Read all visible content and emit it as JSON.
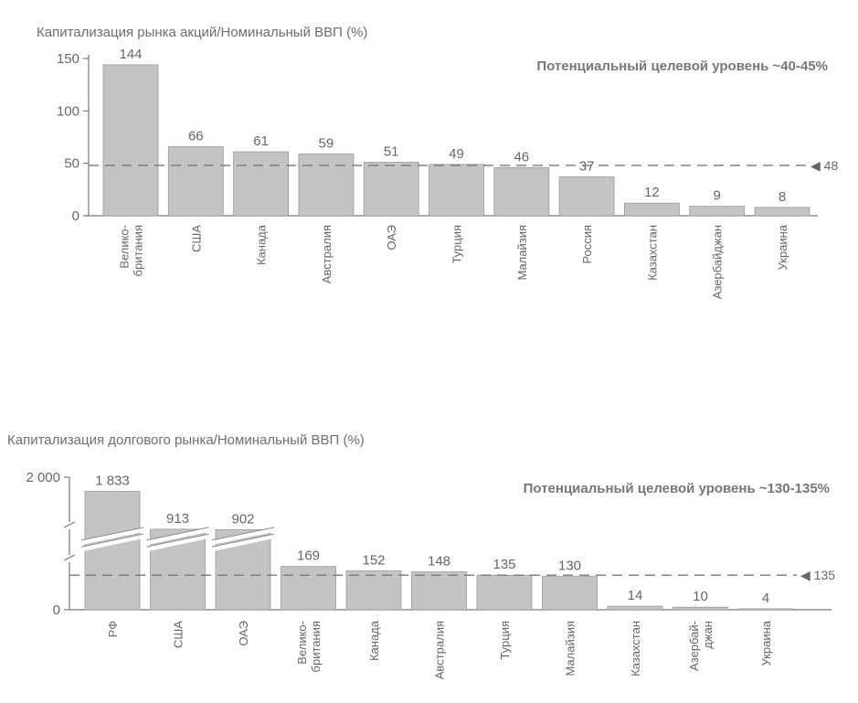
{
  "chart_data": [
    {
      "type": "bar",
      "title": "Капитализация рынка акций/Номинальный ВВП (%)",
      "annotation": "Потенциальный целевой уровень ~40-45%",
      "categories": [
        "Велико-|британия",
        "США",
        "Канада",
        "Австралия",
        "ОАЭ",
        "Турция",
        "Малайзия",
        "Россия",
        "Казахстан",
        "Азербайджан",
        "Украина"
      ],
      "values": [
        144,
        66,
        61,
        59,
        51,
        49,
        46,
        37,
        12,
        9,
        8
      ],
      "value_labels": [
        "144",
        "66",
        "61",
        "59",
        "51",
        "49",
        "46",
        "37",
        "12",
        "9",
        "8"
      ],
      "ylim": [
        0,
        150
      ],
      "yticks": [
        "0",
        "50",
        "100",
        "150"
      ],
      "reference_line": {
        "value": 48,
        "label": "◀ 48"
      },
      "bar_color": "#c4c4c4",
      "grid": false,
      "axis_break": false
    },
    {
      "type": "bar",
      "title": "Капитализация долгового рынка/Номинальный ВВП (%)",
      "annotation": "Потенциальный целевой уровень ~130-135%",
      "categories": [
        "РФ",
        "США",
        "ОАЭ",
        "Велико-|британия",
        "Канада",
        "Австралия",
        "Турция",
        "Малайзия",
        "Казахстан",
        "Азербай-|джан",
        "Украина"
      ],
      "values": [
        1833,
        913,
        902,
        169,
        152,
        148,
        135,
        130,
        14,
        10,
        4
      ],
      "value_labels": [
        "1 833",
        "913",
        "902",
        "169",
        "152",
        "148",
        "135",
        "130",
        "14",
        "10",
        "4"
      ],
      "yticks": [
        "0",
        "2 000"
      ],
      "reference_line": {
        "value": 135,
        "label": "◀ 135"
      },
      "bar_color": "#c4c4c4",
      "grid": false,
      "axis_break": true
    }
  ]
}
